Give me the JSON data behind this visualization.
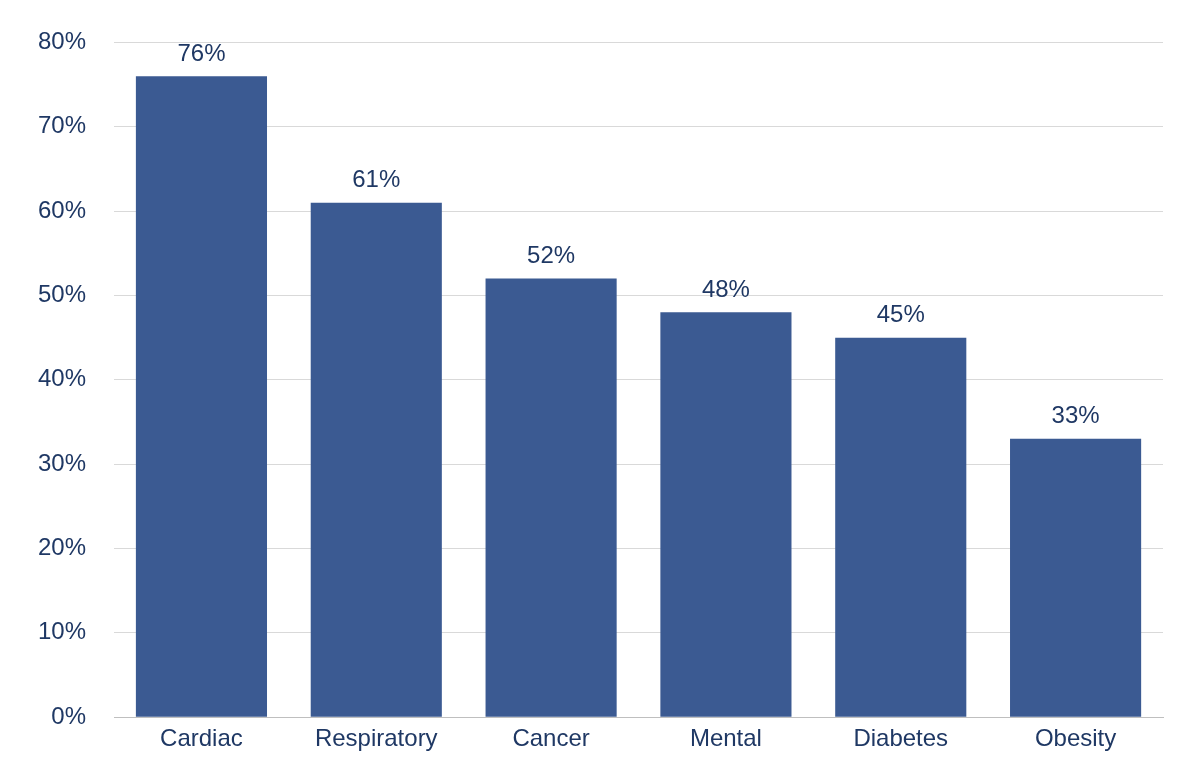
{
  "chart_data": {
    "type": "bar",
    "categories": [
      "Cardiac",
      "Respiratory",
      "Cancer",
      "Mental",
      "Diabetes",
      "Obesity"
    ],
    "values": [
      76,
      61,
      52,
      48,
      45,
      33
    ],
    "color": "#3b5a92",
    "ylim": [
      0,
      80
    ],
    "yticks": [
      {
        "value": 0,
        "label": "0%"
      },
      {
        "value": 10,
        "label": "10%"
      },
      {
        "value": 20,
        "label": "20%"
      },
      {
        "value": 30,
        "label": "30%"
      },
      {
        "value": 40,
        "label": "40%"
      },
      {
        "value": 50,
        "label": "50%"
      },
      {
        "value": 60,
        "label": "60%"
      },
      {
        "value": 70,
        "label": "70%"
      },
      {
        "value": 80,
        "label": "80%"
      }
    ],
    "value_labels": [
      "76%",
      "61%",
      "52%",
      "48%",
      "45%",
      "33%"
    ],
    "grid": "y",
    "legend": false
  }
}
